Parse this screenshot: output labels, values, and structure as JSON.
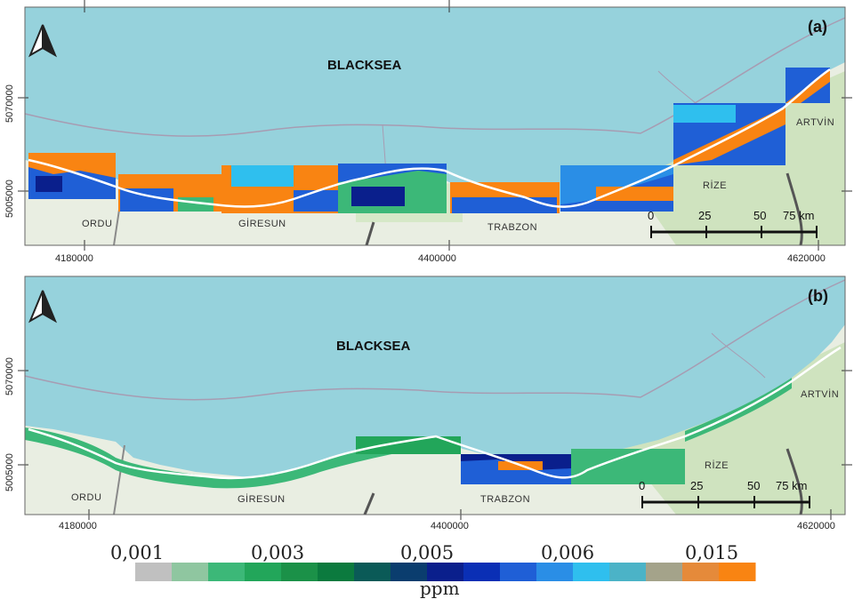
{
  "panels": [
    {
      "id": "(a)",
      "sea_label": "BLACKSEA",
      "cities": [
        "ORDU",
        "GİRESUN",
        "TRABZON",
        "RİZE",
        "ARTVİN"
      ],
      "x_ticks": [
        "4180000",
        "4400000",
        "4620000"
      ],
      "y_ticks": [
        "5070000",
        "5005000"
      ],
      "scale_labels": [
        "0",
        "25",
        "50",
        "75 km"
      ]
    },
    {
      "id": "(b)",
      "sea_label": "BLACKSEA",
      "cities": [
        "ORDU",
        "GİRESUN",
        "TRABZON",
        "RİZE",
        "ARTVİN"
      ],
      "x_ticks": [
        "4180000",
        "4400000",
        "4620000"
      ],
      "y_ticks": [
        "5070000",
        "5005000"
      ],
      "scale_labels": [
        "0",
        "25",
        "50",
        "75 km"
      ]
    }
  ],
  "legend": {
    "values": [
      "0,001",
      "0,003",
      "0,005",
      "0,006",
      "0,015"
    ],
    "unit": "ppm",
    "colors": [
      "#c0c0c0",
      "#8fc6a0",
      "#3cb878",
      "#22a65a",
      "#1b9148",
      "#0b7a3e",
      "#0a5a57",
      "#0a3d6e",
      "#0a1f8c",
      "#0a2fb5",
      "#1f5fd6",
      "#2a8ee6",
      "#2fbfee",
      "#4bb3c7",
      "#a4a38a",
      "#e58a3a",
      "#f98412"
    ]
  },
  "colors": {
    "sea": "#96d2dc",
    "land": "#e9eee2",
    "concentration_high": "#f98412",
    "concentration_mid": "#1f5fd6",
    "concentration_low": "#3cb878",
    "coastline": "#ffffff"
  }
}
